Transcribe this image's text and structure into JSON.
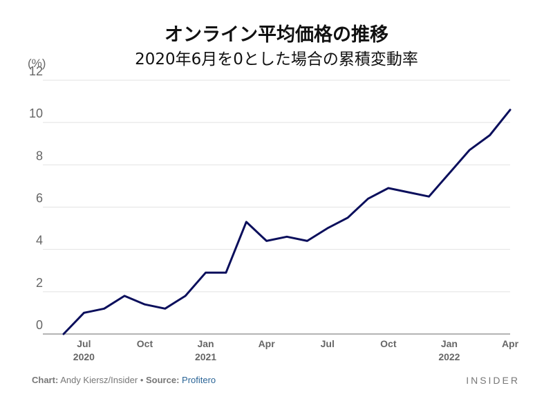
{
  "chart_data": {
    "type": "line",
    "title": "オンライン平均価格の推移",
    "subtitle": "2020年6月を0とした場合の累積変動率",
    "ylabel": "(%)",
    "ylim": [
      0,
      12
    ],
    "yticks": [
      0,
      2,
      4,
      6,
      8,
      10,
      12
    ],
    "xticks": [
      {
        "x": "2020-07",
        "label": "Jul",
        "year": "2020"
      },
      {
        "x": "2020-10",
        "label": "Oct",
        "year": ""
      },
      {
        "x": "2021-01",
        "label": "Jan",
        "year": "2021"
      },
      {
        "x": "2021-04",
        "label": "Apr",
        "year": ""
      },
      {
        "x": "2021-07",
        "label": "Jul",
        "year": ""
      },
      {
        "x": "2021-10",
        "label": "Oct",
        "year": ""
      },
      {
        "x": "2022-01",
        "label": "Jan",
        "year": "2022"
      },
      {
        "x": "2022-04",
        "label": "Apr",
        "year": ""
      }
    ],
    "grid": true,
    "color": "#0b0f5c",
    "series": [
      {
        "x": [
          "2020-06",
          "2020-07",
          "2020-08",
          "2020-09",
          "2020-10",
          "2020-11",
          "2020-12",
          "2021-01",
          "2021-02",
          "2021-03",
          "2021-04",
          "2021-05",
          "2021-06",
          "2021-07",
          "2021-08",
          "2021-09",
          "2021-10",
          "2021-11",
          "2021-12",
          "2022-01",
          "2022-02",
          "2022-03",
          "2022-04"
        ],
        "values": [
          0,
          1.0,
          1.2,
          1.8,
          1.4,
          1.2,
          1.8,
          2.9,
          2.9,
          5.3,
          4.4,
          4.6,
          4.4,
          5.0,
          5.5,
          6.4,
          6.9,
          6.7,
          6.5,
          7.6,
          8.7,
          9.4,
          10.6
        ]
      }
    ]
  },
  "footer": {
    "chart_label": "Chart:",
    "chart_author": "Andy Kiersz/Insider",
    "bullet": "•",
    "source_label": "Source:",
    "source_name": "Profitero"
  },
  "brand": "INSIDER"
}
